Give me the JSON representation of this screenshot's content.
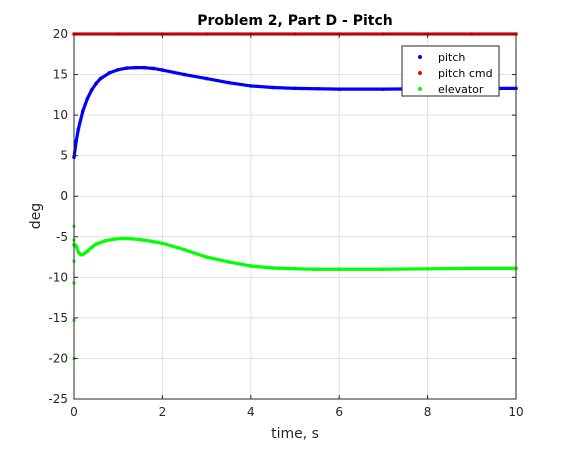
{
  "chart_data": {
    "type": "scatter",
    "title": "Problem 2, Part D - Pitch",
    "xlabel": "time, s",
    "ylabel": "deg",
    "xlim": [
      0,
      10
    ],
    "ylim": [
      -25,
      20
    ],
    "xticks": [
      0,
      2,
      4,
      6,
      8,
      10
    ],
    "yticks": [
      -25,
      -20,
      -15,
      -10,
      -5,
      0,
      5,
      10,
      15,
      20
    ],
    "grid": true,
    "legend_position": "top-right",
    "series": [
      {
        "name": "pitch",
        "color": "#0000ff",
        "x": [
          0,
          0.05,
          0.1,
          0.2,
          0.3,
          0.4,
          0.5,
          0.6,
          0.8,
          1.0,
          1.2,
          1.4,
          1.6,
          1.8,
          2.0,
          2.5,
          3.0,
          3.5,
          4.0,
          4.5,
          5.0,
          5.5,
          6.0,
          7.0,
          8.0,
          9.0,
          10.0
        ],
        "y": [
          4.8,
          6.8,
          8.3,
          10.5,
          12.0,
          13.1,
          13.9,
          14.5,
          15.2,
          15.6,
          15.8,
          15.85,
          15.85,
          15.75,
          15.55,
          15.0,
          14.5,
          14.0,
          13.6,
          13.4,
          13.3,
          13.25,
          13.2,
          13.2,
          13.25,
          13.3,
          13.3
        ]
      },
      {
        "name": "pitch cmd",
        "color": "#ff0000",
        "x": [
          0,
          1,
          2,
          3,
          4,
          5,
          6,
          7,
          8,
          9,
          10
        ],
        "y": [
          20,
          20,
          20,
          20,
          20,
          20,
          20,
          20,
          20,
          20,
          20
        ]
      },
      {
        "name": "elevator",
        "color": "#00ff00",
        "x": [
          0.0,
          0.02,
          0.04,
          0.06,
          0.1,
          0.15,
          0.2,
          0.3,
          0.4,
          0.5,
          0.7,
          0.9,
          1.1,
          1.3,
          1.5,
          1.8,
          2.0,
          2.5,
          3.0,
          3.5,
          4.0,
          4.5,
          5.0,
          5.5,
          6.0,
          7.0,
          8.0,
          9.0,
          10.0
        ],
        "y": [
          -6.0,
          -6.0,
          -6.1,
          -6.3,
          -6.9,
          -7.2,
          -7.2,
          -6.8,
          -6.3,
          -5.9,
          -5.5,
          -5.3,
          -5.2,
          -5.25,
          -5.35,
          -5.6,
          -5.8,
          -6.6,
          -7.5,
          -8.1,
          -8.6,
          -8.85,
          -8.95,
          -9.0,
          -9.0,
          -9.0,
          -8.95,
          -8.9,
          -8.9
        ]
      }
    ],
    "transient_points": {
      "series": "elevator",
      "x": [
        0,
        0,
        0,
        0,
        0,
        0
      ],
      "y": [
        -3.7,
        -5.4,
        -8.0,
        -10.7,
        -15.3,
        -20.0
      ]
    }
  }
}
